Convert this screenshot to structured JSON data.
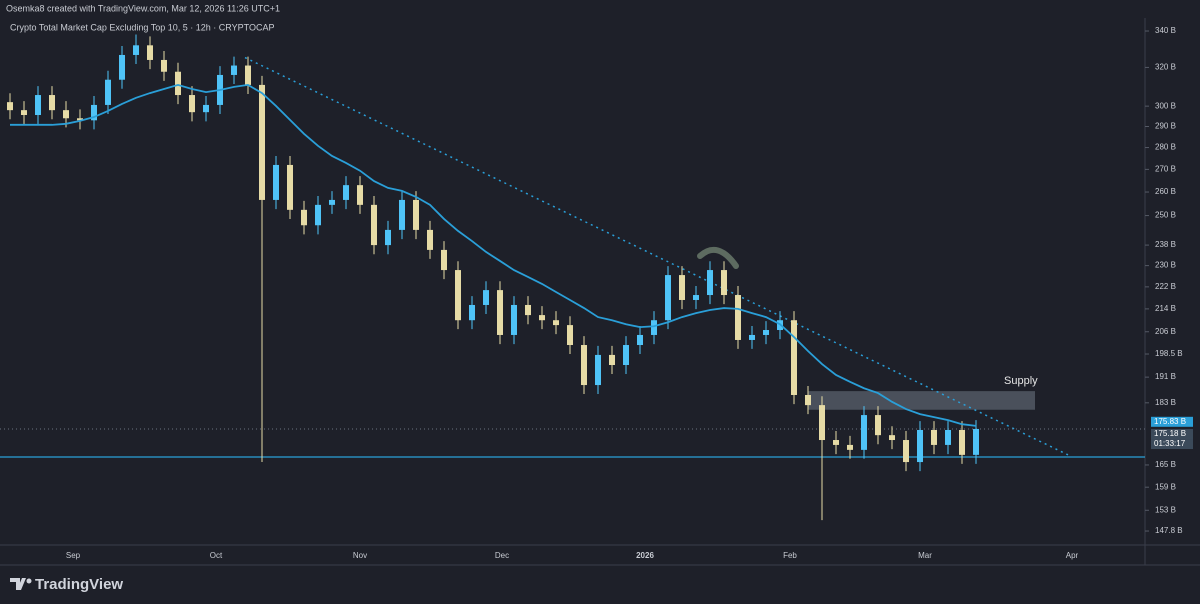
{
  "header": "Osemka8 created with TradingView.com, Mar 12, 2026 11:26 UTC+1",
  "footer": "TradingView",
  "chart_data": {
    "type": "candlestick",
    "title": "Crypto Total Market Cap Excluding Top 10, 5 · 12h · CRYPTOCAP",
    "log_scale": true,
    "ylim": [
      144.4,
      346.3
    ],
    "yticks": [
      {
        "value": 340,
        "label": "340 B"
      },
      {
        "value": 320,
        "label": "320 B"
      },
      {
        "value": 300,
        "label": "300 B"
      },
      {
        "value": 290,
        "label": "290 B"
      },
      {
        "value": 280,
        "label": "280 B"
      },
      {
        "value": 270,
        "label": "270 B"
      },
      {
        "value": 260,
        "label": "260 B"
      },
      {
        "value": 250,
        "label": "250 B"
      },
      {
        "value": 238,
        "label": "238 B"
      },
      {
        "value": 230,
        "label": "230 B"
      },
      {
        "value": 222,
        "label": "222 B"
      },
      {
        "value": 214,
        "label": "214 B"
      },
      {
        "value": 206,
        "label": "206 B"
      },
      {
        "value": 198.5,
        "label": "198.5 B"
      },
      {
        "value": 191,
        "label": "191 B"
      },
      {
        "value": 183,
        "label": "183 B"
      },
      {
        "value": 165,
        "label": "165 B"
      },
      {
        "value": 159,
        "label": "159 B"
      },
      {
        "value": 153,
        "label": "153 B"
      },
      {
        "value": 147.8,
        "label": "147.8 B"
      }
    ],
    "xticks": [
      "Sep",
      "Oct",
      "Nov",
      "Dec",
      "2026",
      "Feb",
      "Mar",
      "Apr"
    ],
    "up_color": "#4fc3f7",
    "down_color": "#e6dba6",
    "open": [
      302,
      298,
      295.6,
      305.6,
      298,
      294,
      293,
      300.6,
      313.5,
      326.7,
      332,
      324,
      317.7,
      305.6,
      297,
      300.6,
      316,
      321,
      310.8,
      256.6,
      272,
      252.4,
      246,
      254.5,
      256.6,
      263,
      254.5,
      238,
      244.1,
      256.6,
      244.1,
      236.1,
      228.3,
      210,
      215.4,
      220.8,
      204.9,
      215.4,
      211.8,
      210,
      208.3,
      201.5,
      188.5,
      198.2,
      194.9,
      201.5,
      204.9,
      210,
      226.4,
      217.2,
      219,
      228.3,
      219,
      203.2,
      204.9,
      206.6,
      210,
      185.4,
      182.3,
      172,
      170.6,
      169.2,
      179.3,
      173.4,
      172,
      165.8,
      174.9,
      170.6,
      174.9,
      167.8
    ],
    "high": [
      306.5,
      302.5,
      310.2,
      310.2,
      302.5,
      298.4,
      305.1,
      318.2,
      331.6,
      338,
      337,
      328.9,
      322.5,
      310.2,
      305.1,
      320.7,
      325.8,
      325.8,
      315.5,
      276.1,
      276.1,
      256.2,
      258.3,
      260.4,
      267,
      267,
      258.3,
      247.8,
      260.4,
      260.4,
      247.8,
      239.6,
      231.7,
      218.6,
      224.1,
      224.1,
      218.6,
      218.6,
      215,
      213.2,
      211.4,
      204.5,
      201.2,
      201.2,
      204.5,
      208,
      213.2,
      229.8,
      229.8,
      222.3,
      231.7,
      231.7,
      222.3,
      208,
      209.7,
      213.2,
      213.2,
      188.2,
      185,
      174.6,
      173.2,
      182,
      182,
      176,
      174.6,
      177.5,
      177.5,
      177.5,
      177.5,
      177.8
    ],
    "low": [
      293.5,
      291.2,
      291.2,
      293.5,
      289.6,
      288.6,
      288.6,
      296.1,
      308.8,
      321.8,
      319.1,
      312.9,
      301,
      292.5,
      292.5,
      296.1,
      311.3,
      306.1,
      165.8,
      252.7,
      248.6,
      242.3,
      242.3,
      250.7,
      252.7,
      250.7,
      234.4,
      234.4,
      240.4,
      240.4,
      232.6,
      224.9,
      206.9,
      206.9,
      212.2,
      201.8,
      201.8,
      208.6,
      206.9,
      205.2,
      198.5,
      185.7,
      185.7,
      192,
      192,
      198.5,
      201.8,
      206.9,
      213.9,
      213.9,
      215.7,
      215.7,
      200.2,
      200.2,
      201.8,
      203.5,
      182.6,
      179.6,
      150.5,
      168,
      166.7,
      166.7,
      170.8,
      169.4,
      163.3,
      163.3,
      168,
      168,
      165.3,
      165.3
    ],
    "close": [
      298,
      295.6,
      305.6,
      298,
      294,
      293,
      300.6,
      313.5,
      326.7,
      332,
      324,
      317.7,
      305.6,
      297,
      300.6,
      316,
      321,
      310.8,
      256.6,
      272,
      252.4,
      246,
      254.5,
      256.6,
      263,
      254.5,
      238,
      244.1,
      256.6,
      244.1,
      236.1,
      228.3,
      210,
      215.4,
      220.8,
      204.9,
      215.4,
      211.8,
      210,
      208.3,
      201.5,
      188.5,
      198.2,
      194.9,
      201.5,
      204.9,
      210,
      226.4,
      217.2,
      219,
      228.3,
      219,
      203.2,
      204.9,
      206.6,
      210,
      185.4,
      182.3,
      172,
      170.6,
      169.2,
      179.3,
      173.4,
      172,
      165.8,
      174.9,
      170.6,
      174.9,
      167.8,
      175.2
    ],
    "moving_average": {
      "color": "#2a9fd8",
      "values": [
        290.8,
        290.8,
        290.8,
        290.8,
        291.3,
        292.7,
        294.6,
        297.6,
        301.1,
        304.2,
        306.6,
        308.7,
        310.8,
        308.7,
        307.1,
        308.2,
        309.8,
        310.8,
        306.6,
        300.1,
        293.2,
        286.5,
        280.8,
        276.1,
        272.9,
        269.4,
        264.8,
        261.8,
        260.5,
        257.9,
        254.5,
        248.6,
        243.7,
        239.6,
        235.3,
        231.8,
        228.3,
        225.7,
        223.1,
        220.1,
        217.2,
        214.3,
        211.1,
        210,
        208.6,
        207.6,
        207.9,
        209.3,
        211.1,
        212.5,
        213.6,
        214.3,
        214,
        212.5,
        211.1,
        208.6,
        204.2,
        199.5,
        195.2,
        191.7,
        189.5,
        187.5,
        186,
        183.3,
        181.1,
        179.6,
        178.7,
        177.8,
        176.6,
        176.1
      ]
    },
    "support_level": 167.2,
    "trendline": [
      325.3,
      167.8
    ],
    "supply_zone": {
      "label": "Supply",
      "range": [
        180.9,
        186.6
      ]
    },
    "price_labels": [
      {
        "value": 175.83,
        "label": "175.83 B"
      },
      {
        "value": 175.18,
        "label": "175.18 B"
      }
    ],
    "countdown": "01:33:17"
  }
}
